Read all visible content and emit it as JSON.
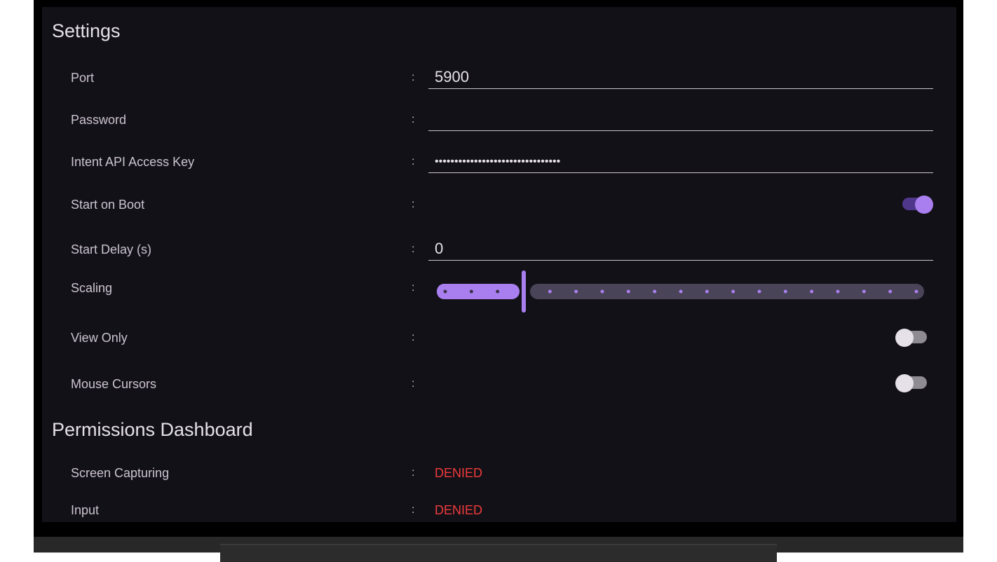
{
  "settings": {
    "title": "Settings",
    "port": {
      "label": "Port",
      "value": "5900"
    },
    "password": {
      "label": "Password",
      "value": ""
    },
    "intent_key": {
      "label": "Intent API Access Key",
      "value": "••••••••••••••••••••••••••••••••"
    },
    "start_on_boot": {
      "label": "Start on Boot",
      "on": true
    },
    "start_delay": {
      "label": "Start Delay (s)",
      "value": "0"
    },
    "scaling": {
      "label": "Scaling",
      "step_index": 3,
      "step_count": 18
    },
    "view_only": {
      "label": "View Only",
      "on": false
    },
    "mouse_cursors": {
      "label": "Mouse Cursors",
      "on": false
    },
    "colon": ":"
  },
  "permissions": {
    "title": "Permissions Dashboard",
    "screen_capturing": {
      "label": "Screen Capturing",
      "status": "DENIED"
    },
    "input": {
      "label": "Input",
      "status": "DENIED"
    }
  },
  "colors": {
    "accent": "#a97ff0",
    "accent_dark": "#4f378b",
    "denied": "#ef3b3b",
    "background": "#131118"
  }
}
